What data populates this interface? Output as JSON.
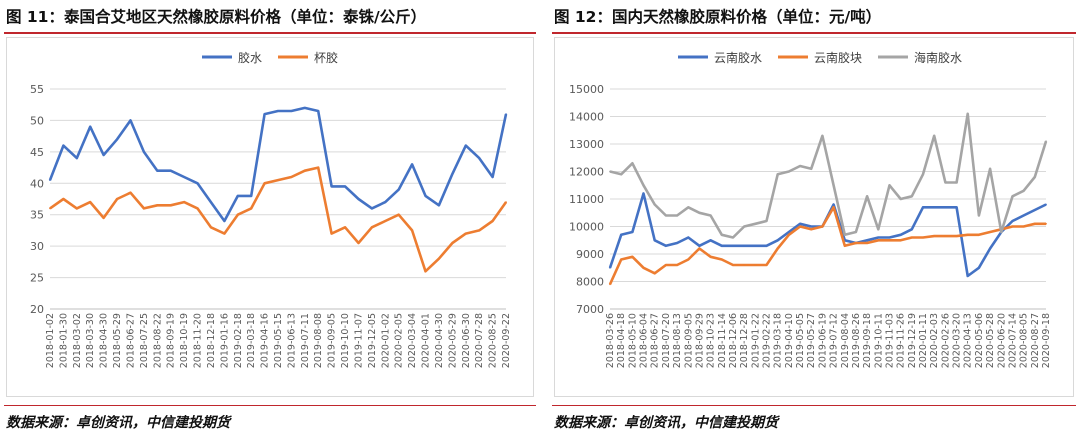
{
  "left": {
    "title": "图 11：泰国合艾地区天然橡胶原料价格（单位：泰铢/公斤）",
    "source": "数据来源：卓创资讯，中信建投期货"
  },
  "right": {
    "title": "图 12：国内天然橡胶原料价格（单位：元/吨）",
    "source": "数据来源：卓创资讯，中信建投期货"
  },
  "chart_data": [
    {
      "type": "line",
      "title": "图 11：泰国合艾地区天然橡胶原料价格（单位：泰铢/公斤）",
      "ylim": [
        20,
        55
      ],
      "yticks": [
        20,
        25,
        30,
        35,
        40,
        45,
        50,
        55
      ],
      "grid": true,
      "legend": "top-center",
      "x": [
        "2018-01-02",
        "2018-01-30",
        "2018-03-02",
        "2018-03-30",
        "2018-04-30",
        "2018-05-29",
        "2018-06-27",
        "2018-07-25",
        "2018-08-22",
        "2018-09-19",
        "2018-10-19",
        "2018-11-20",
        "2018-12-18",
        "2019-01-16",
        "2019-02-18",
        "2019-03-18",
        "2019-04-16",
        "2019-05-15",
        "2019-06-13",
        "2019-07-11",
        "2019-08-08",
        "2019-09-05",
        "2019-10-10",
        "2019-11-07",
        "2019-12-05",
        "2020-01-02",
        "2020-02-05",
        "2020-03-04",
        "2020-04-01",
        "2020-04-30",
        "2020-05-29",
        "2020-06-30",
        "2020-07-28",
        "2020-08-25",
        "2020-09-22"
      ],
      "series": [
        {
          "name": "胶水",
          "color": "#4472c4",
          "values": [
            40.5,
            46,
            44,
            49,
            44.5,
            47,
            50,
            45,
            42,
            42,
            41,
            40,
            37,
            34,
            38,
            38,
            51,
            51.5,
            51.5,
            52,
            51.5,
            39.5,
            39.5,
            37.5,
            36,
            37,
            39,
            43,
            38,
            36.5,
            41.5,
            46,
            44,
            41,
            51
          ]
        },
        {
          "name": "杯胶",
          "color": "#ed7d31",
          "values": [
            36,
            37.5,
            36,
            37,
            34.5,
            37.5,
            38.5,
            36,
            36.5,
            36.5,
            37,
            36,
            33,
            32,
            35,
            36,
            40,
            40.5,
            41,
            42,
            42.5,
            32,
            33,
            30.5,
            33,
            34,
            35,
            32.5,
            26,
            28,
            30.5,
            32,
            32.5,
            34,
            37
          ]
        }
      ]
    },
    {
      "type": "line",
      "title": "图 12：国内天然橡胶原料价格（单位：元/吨）",
      "ylim": [
        7000,
        15000
      ],
      "yticks": [
        7000,
        8000,
        9000,
        10000,
        11000,
        12000,
        13000,
        14000,
        15000
      ],
      "grid": true,
      "legend": "top-center",
      "x": [
        "2018-03-26",
        "2018-04-18",
        "2018-05-10",
        "2018-06-04",
        "2018-06-27",
        "2018-07-20",
        "2018-08-13",
        "2018-09-05",
        "2018-09-29",
        "2018-10-23",
        "2018-11-14",
        "2018-12-06",
        "2018-12-28",
        "2019-01-22",
        "2019-02-22",
        "2019-03-18",
        "2019-04-10",
        "2019-05-05",
        "2019-05-27",
        "2019-06-19",
        "2019-07-12",
        "2019-08-04",
        "2019-08-26",
        "2019-09-18",
        "2019-10-11",
        "2019-11-03",
        "2019-11-26",
        "2019-12-19",
        "2020-01-11",
        "2020-02-03",
        "2020-02-26",
        "2020-03-20",
        "2020-04-13",
        "2020-05-06",
        "2020-05-28",
        "2020-06-20",
        "2020-07-14",
        "2020-08-05",
        "2020-08-27",
        "2020-09-18"
      ],
      "series": [
        {
          "name": "云南胶水",
          "color": "#4472c4",
          "values": [
            8500,
            9700,
            9800,
            11200,
            9500,
            9300,
            9400,
            9600,
            9300,
            9500,
            9300,
            9300,
            9300,
            9300,
            9300,
            9500,
            9800,
            10100,
            10000,
            10000,
            10800,
            9500,
            9400,
            9500,
            9600,
            9600,
            9700,
            9900,
            10700,
            10700,
            10700,
            10700,
            8200,
            8500,
            9200,
            9800,
            10200,
            10400,
            10600,
            10800
          ]
        },
        {
          "name": "云南胶块",
          "color": "#ed7d31",
          "values": [
            7900,
            8800,
            8900,
            8500,
            8300,
            8600,
            8600,
            8800,
            9200,
            8900,
            8800,
            8600,
            8600,
            8600,
            8600,
            9200,
            9700,
            10000,
            9900,
            10000,
            10700,
            9300,
            9400,
            9400,
            9500,
            9500,
            9500,
            9600,
            9600,
            9650,
            9650,
            9650,
            9700,
            9700,
            9800,
            9900,
            10000,
            10000,
            10100,
            10100
          ]
        },
        {
          "name": "海南胶水",
          "color": "#a5a5a5",
          "values": [
            12000,
            11900,
            12300,
            11500,
            10800,
            10400,
            10400,
            10700,
            10500,
            10400,
            9700,
            9600,
            10000,
            10100,
            10200,
            11900,
            12000,
            12200,
            12100,
            13300,
            11500,
            9700,
            9800,
            11100,
            9900,
            11500,
            11000,
            11100,
            11900,
            13300,
            11600,
            11600,
            14100,
            10400,
            12100,
            9800,
            11100,
            11300,
            11800,
            13100
          ]
        }
      ]
    }
  ]
}
